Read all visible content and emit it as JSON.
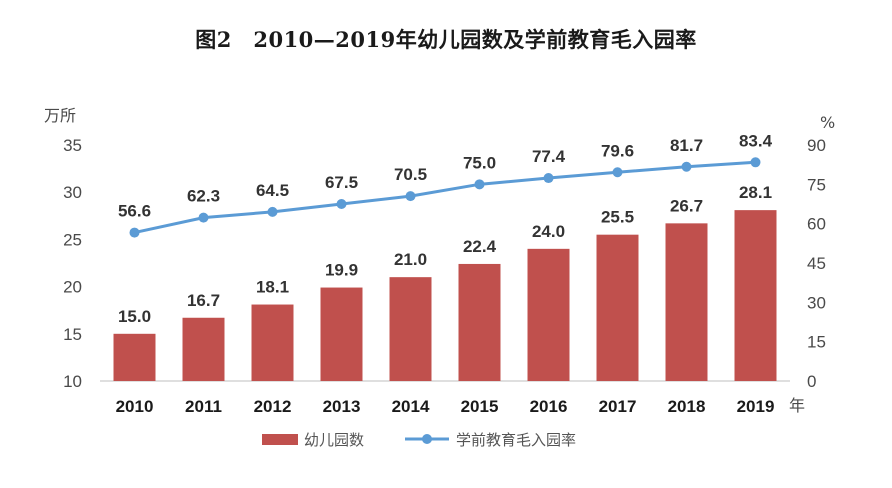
{
  "title": "图2　2010—2019年幼儿园数及学前教育毛入园率",
  "chart_data": {
    "type": "bar+line",
    "categories": [
      "2010",
      "2011",
      "2012",
      "2013",
      "2014",
      "2015",
      "2016",
      "2017",
      "2018",
      "2019"
    ],
    "series": [
      {
        "name": "幼儿园数",
        "type": "bar",
        "axis": "left",
        "values": [
          15.0,
          16.7,
          18.1,
          19.9,
          21.0,
          22.4,
          24.0,
          25.5,
          26.7,
          28.1
        ],
        "labels": [
          "15.0",
          "16.7",
          "18.1",
          "19.9",
          "21.0",
          "22.4",
          "24.0",
          "25.5",
          "26.7",
          "28.1"
        ],
        "color": "#c0504d"
      },
      {
        "name": "学前教育毛入园率",
        "type": "line",
        "axis": "right",
        "values": [
          56.6,
          62.3,
          64.5,
          67.5,
          70.5,
          75.0,
          77.4,
          79.6,
          81.7,
          83.4
        ],
        "labels": [
          "56.6",
          "62.3",
          "64.5",
          "67.5",
          "70.5",
          "75.0",
          "77.4",
          "79.6",
          "81.7",
          "83.4"
        ],
        "color": "#5b9bd5"
      }
    ],
    "y_left": {
      "unit": "万所",
      "min": 10,
      "max": 35,
      "ticks": [
        10,
        15,
        20,
        25,
        30,
        35
      ]
    },
    "y_right": {
      "unit": "%",
      "min": 0,
      "max": 90,
      "ticks": [
        0,
        15,
        30,
        45,
        60,
        75,
        90
      ]
    },
    "x_unit": "年",
    "legend_position": "bottom"
  }
}
